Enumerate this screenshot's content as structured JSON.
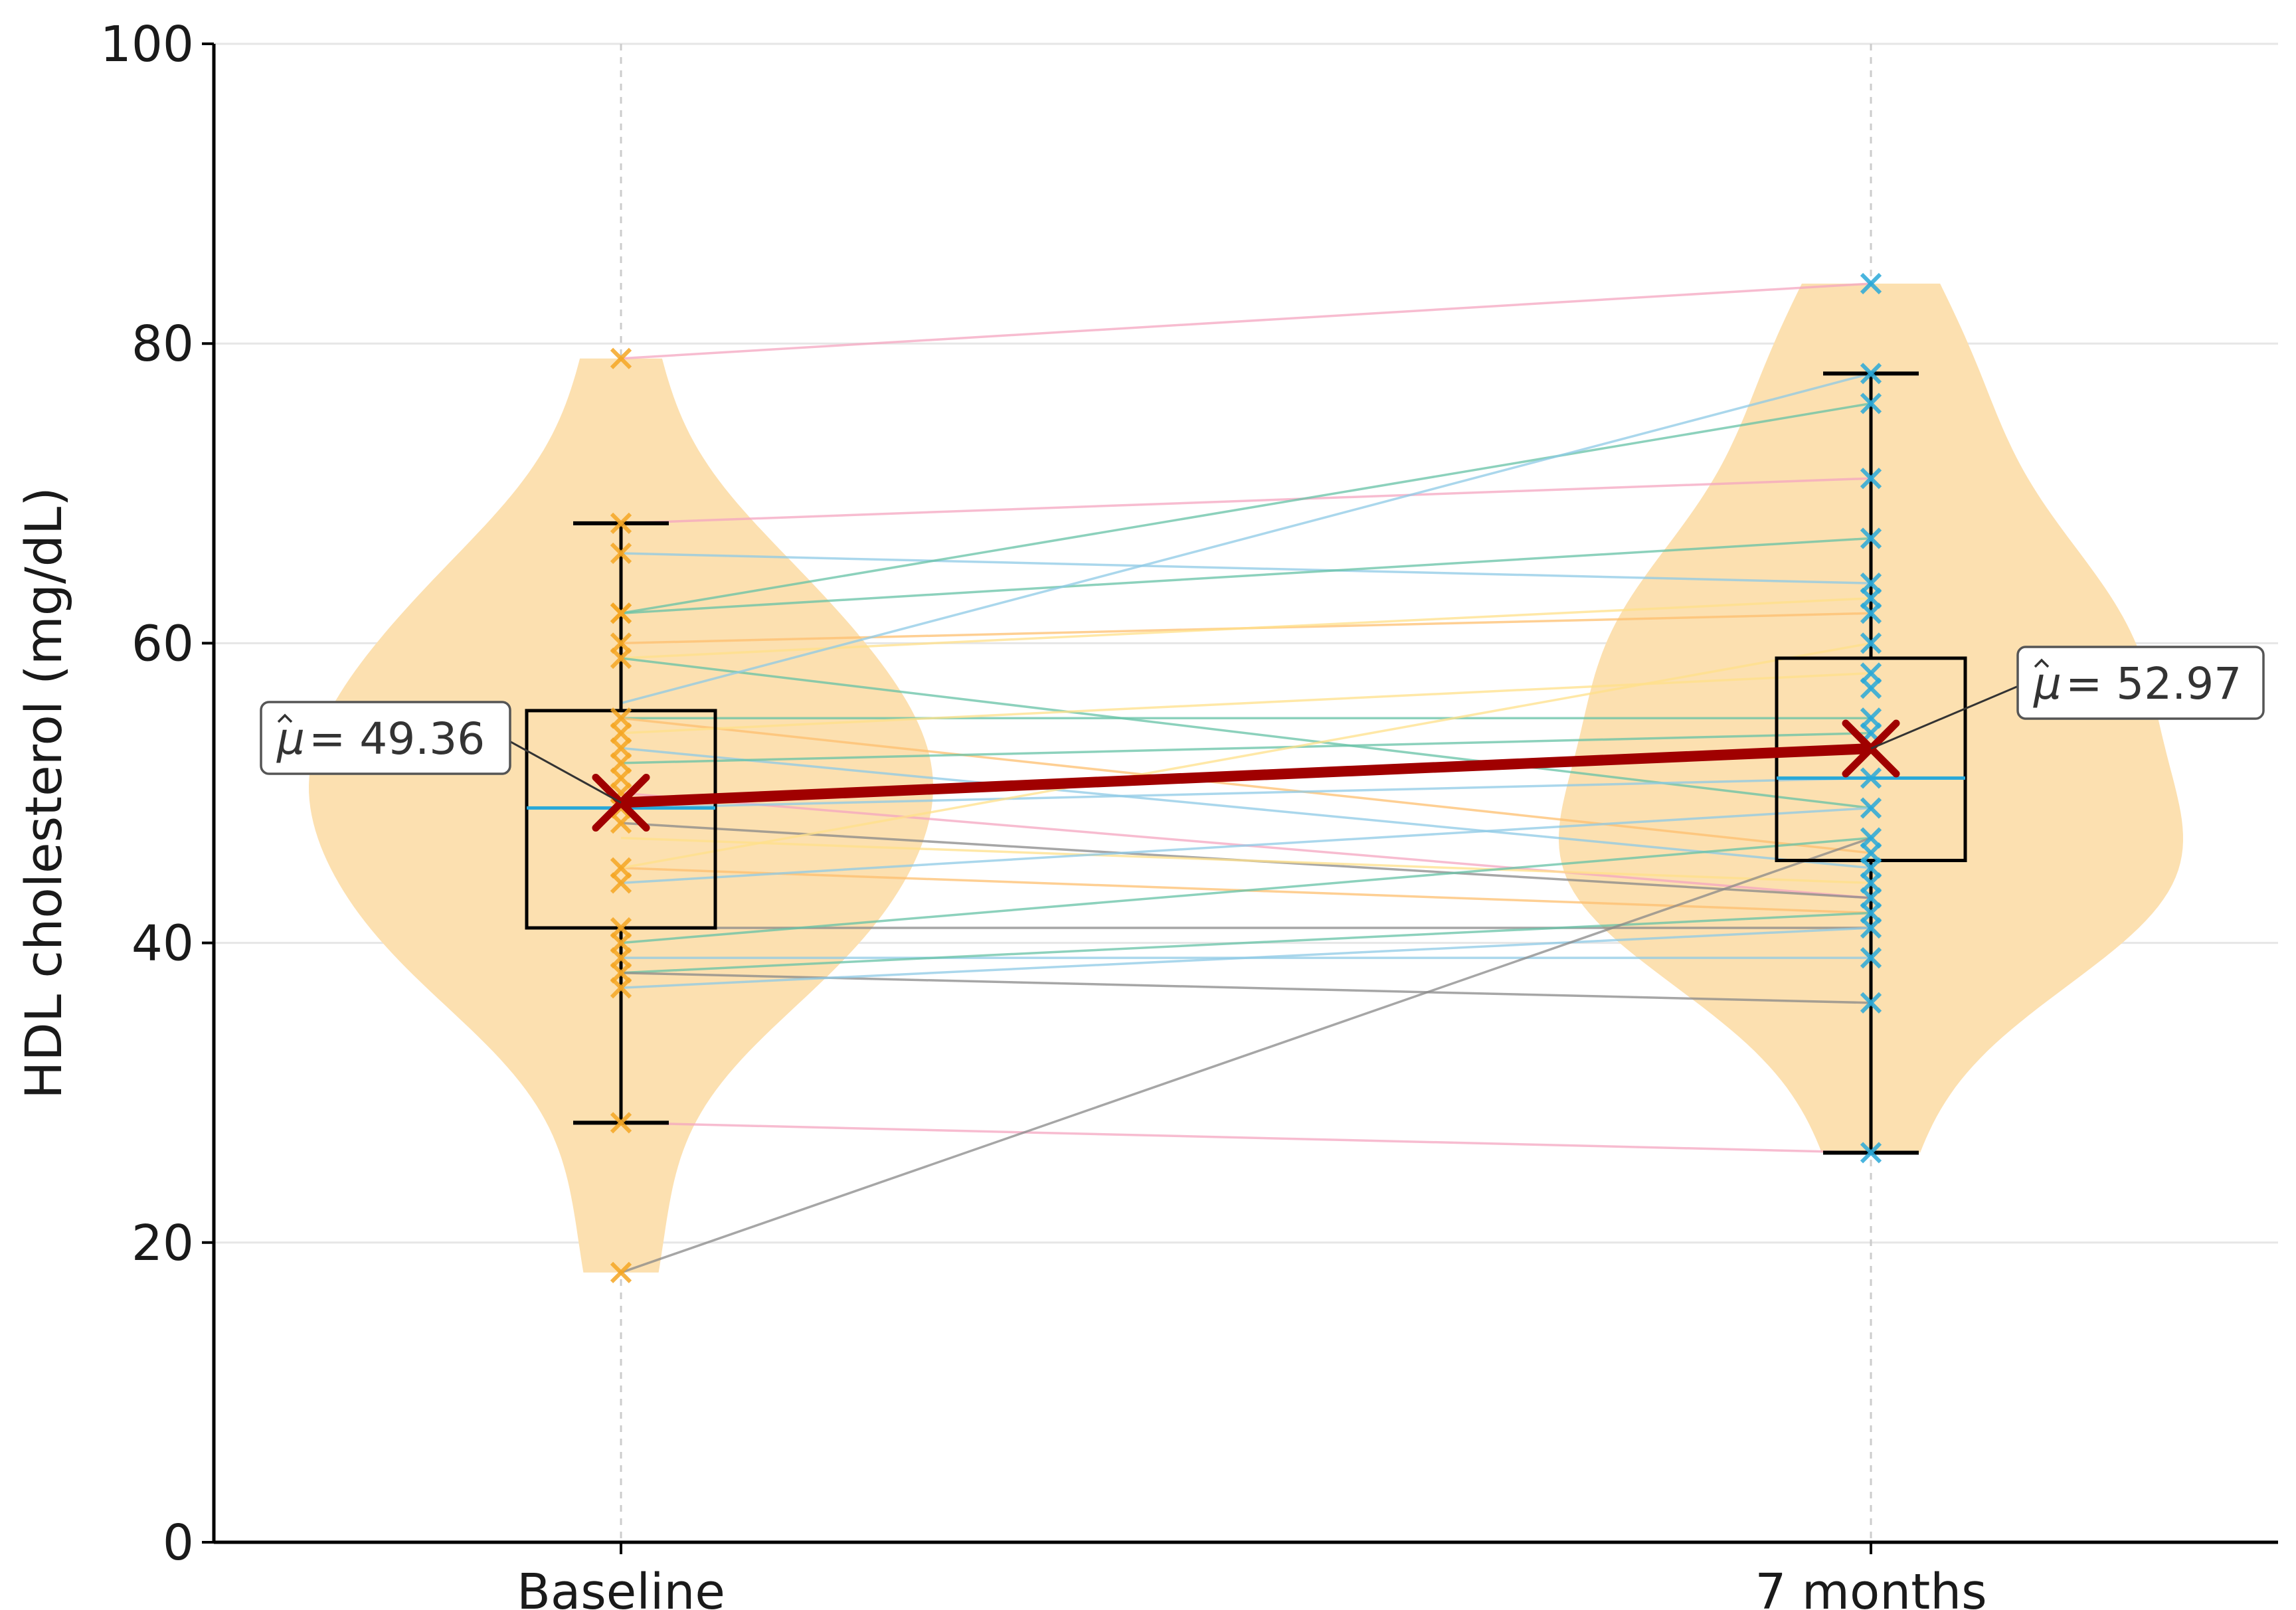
{
  "chart_data": {
    "type": "violin",
    "title": "",
    "xlabel": "",
    "ylabel": "HDL cholesterol (mg/dL)",
    "ylim": [
      0,
      100
    ],
    "yticks": [
      0,
      20,
      40,
      60,
      80,
      100
    ],
    "grid": true,
    "categories": [
      "Baseline",
      "7 months"
    ],
    "groups": [
      {
        "name": "Baseline",
        "mean": 49.36,
        "mean_label": "= 49.36",
        "median": 49,
        "q1": 41,
        "q3": 55.5,
        "whisker_low": 28,
        "whisker_high": 68,
        "violin_color": "#fce0b0",
        "point_color": "#f5a623",
        "median_color": "#29a8d8",
        "points": [
          79,
          68,
          66,
          62,
          62,
          60,
          59,
          55,
          54,
          53,
          52,
          51,
          50,
          49,
          48,
          45,
          44,
          41,
          40,
          39,
          38,
          37,
          28,
          18
        ]
      },
      {
        "name": "7 months",
        "mean": 52.97,
        "mean_label": "= 52.97",
        "median": 51,
        "q1": 45.5,
        "q3": 59,
        "whisker_low": 26,
        "whisker_high": 78,
        "violin_color": "#fce0b0",
        "point_color": "#29a8d8",
        "median_color": "#29a8d8",
        "points": [
          84,
          78,
          76,
          71,
          67,
          64,
          63,
          62,
          60,
          58,
          57,
          55,
          54,
          51,
          49,
          47,
          46,
          45,
          44,
          43,
          42,
          41,
          39,
          36,
          26
        ]
      }
    ],
    "paired_lines": [
      {
        "from": 79,
        "to": 84,
        "color": "#f4a6c0"
      },
      {
        "from": 68,
        "to": 71,
        "color": "#f4a6c0"
      },
      {
        "from": 66,
        "to": 64,
        "color": "#8ecae6"
      },
      {
        "from": 62,
        "to": 67,
        "color": "#66c2a5"
      },
      {
        "from": 62,
        "to": 76,
        "color": "#66c2a5"
      },
      {
        "from": 60,
        "to": 62,
        "color": "#fdbf6f"
      },
      {
        "from": 59,
        "to": 63,
        "color": "#ffe08a"
      },
      {
        "from": 59,
        "to": 49,
        "color": "#66c2a5"
      },
      {
        "from": 56,
        "to": 78,
        "color": "#8ecae6"
      },
      {
        "from": 55,
        "to": 55,
        "color": "#66c2a5"
      },
      {
        "from": 55,
        "to": 46,
        "color": "#fdbf6f"
      },
      {
        "from": 54,
        "to": 58,
        "color": "#ffe08a"
      },
      {
        "from": 53,
        "to": 45,
        "color": "#8ecae6"
      },
      {
        "from": 52,
        "to": 54,
        "color": "#66c2a5"
      },
      {
        "from": 50,
        "to": 43,
        "color": "#f4a6c0"
      },
      {
        "from": 49,
        "to": 51,
        "color": "#8ecae6"
      },
      {
        "from": 48,
        "to": 43,
        "color": "#888888"
      },
      {
        "from": 47,
        "to": 44,
        "color": "#ffe08a"
      },
      {
        "from": 45,
        "to": 42,
        "color": "#fdbf6f"
      },
      {
        "from": 45,
        "to": 60,
        "color": "#ffe08a"
      },
      {
        "from": 44,
        "to": 49,
        "color": "#8ecae6"
      },
      {
        "from": 41,
        "to": 41,
        "color": "#888888"
      },
      {
        "from": 40,
        "to": 47,
        "color": "#66c2a5"
      },
      {
        "from": 39,
        "to": 39,
        "color": "#8ecae6"
      },
      {
        "from": 38,
        "to": 42,
        "color": "#66c2a5"
      },
      {
        "from": 38,
        "to": 36,
        "color": "#888888"
      },
      {
        "from": 37,
        "to": 41,
        "color": "#8ecae6"
      },
      {
        "from": 28,
        "to": 26,
        "color": "#f4a6c0"
      },
      {
        "from": 18,
        "to": 47,
        "color": "#888888"
      }
    ],
    "mean_line_color": "#a00000",
    "mean_marker_color": "#a00000",
    "box_color": "#000000",
    "grid_color": "#e6e6e6"
  }
}
